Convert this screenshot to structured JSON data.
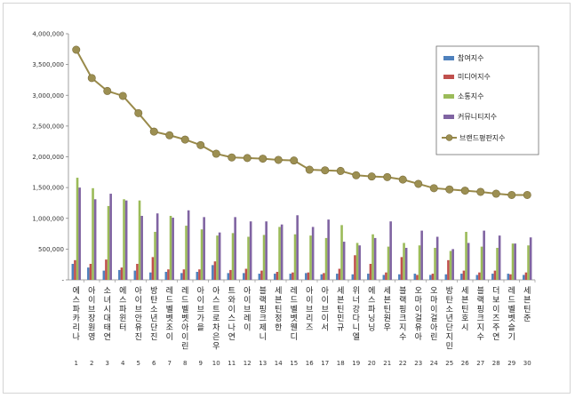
{
  "chart_data": {
    "type": "bar",
    "title": "",
    "xlabel": "",
    "ylabel": "",
    "ylim": [
      0,
      4000000
    ],
    "yticks": [
      "-",
      "500,000",
      "1,000,000",
      "1,500,000",
      "2,000,000",
      "2,500,000",
      "3,000,000",
      "3,500,000",
      "4,000,000"
    ],
    "grid": false,
    "legend_position": "right",
    "ranks": [
      "1",
      "2",
      "3",
      "4",
      "5",
      "6",
      "7",
      "8",
      "9",
      "10",
      "11",
      "12",
      "13",
      "14",
      "15",
      "16",
      "17",
      "18",
      "19",
      "20",
      "21",
      "22",
      "23",
      "24",
      "25",
      "26",
      "27",
      "28",
      "29",
      "30"
    ],
    "categories": [
      "에스파 카리나",
      "아이브 장원영",
      "소녀시대 태연",
      "에스파 윈터",
      "아이브 안유진",
      "방탄소년단 진",
      "레드벨벳 조이",
      "레드벨벳 아이린",
      "아이브 가을",
      "아스트로 차은우",
      "트와이스 나연",
      "아이브 레이",
      "블랙핑크 제니",
      "세븐틴 정한",
      "레드벨벳 웬디",
      "아이브 리즈",
      "아이브 이서",
      "세븐틴 민규",
      "위너 강다니엘",
      "에스파 닝닝",
      "세븐틴 원우",
      "블랙핑크 지수",
      "오마이걸 유아",
      "오마이걸 아린",
      "방탄소년단 지민",
      "세븐틴 호시",
      "블랙핑크 지수",
      "더보이즈 주연",
      "레드벨벳 슬기",
      "세븐틴 준"
    ],
    "series": [
      {
        "name": "참여지수",
        "color": "#4f81bd",
        "values": [
          260000,
          200000,
          150000,
          160000,
          150000,
          120000,
          130000,
          110000,
          130000,
          240000,
          110000,
          110000,
          100000,
          100000,
          100000,
          110000,
          90000,
          100000,
          90000,
          100000,
          80000,
          90000,
          100000,
          80000,
          90000,
          100000,
          80000,
          100000,
          100000,
          80000
        ]
      },
      {
        "name": "미디어지수",
        "color": "#c0504d",
        "values": [
          320000,
          260000,
          330000,
          200000,
          260000,
          370000,
          170000,
          170000,
          170000,
          300000,
          160000,
          180000,
          150000,
          130000,
          120000,
          120000,
          110000,
          180000,
          400000,
          260000,
          120000,
          370000,
          80000,
          100000,
          320000,
          150000,
          120000,
          150000,
          90000,
          120000
        ]
      },
      {
        "name": "소통지수",
        "color": "#9bbb59",
        "values": [
          1660000,
          1490000,
          1200000,
          1310000,
          1290000,
          780000,
          1040000,
          880000,
          820000,
          720000,
          760000,
          700000,
          730000,
          860000,
          740000,
          720000,
          680000,
          890000,
          600000,
          740000,
          540000,
          600000,
          560000,
          520000,
          470000,
          780000,
          540000,
          520000,
          590000,
          560000
        ]
      },
      {
        "name": "커뮤니티지수",
        "color": "#8064a2",
        "values": [
          1500000,
          1310000,
          1400000,
          1290000,
          1040000,
          1080000,
          1010000,
          1130000,
          1020000,
          770000,
          1020000,
          950000,
          950000,
          900000,
          1050000,
          860000,
          980000,
          620000,
          560000,
          680000,
          950000,
          520000,
          800000,
          700000,
          500000,
          600000,
          800000,
          720000,
          590000,
          690000
        ]
      }
    ],
    "line": {
      "name": "브랜드평판지수",
      "color": "#998a4a",
      "values": [
        3740000,
        3280000,
        3070000,
        2990000,
        2710000,
        2410000,
        2350000,
        2280000,
        2190000,
        2050000,
        1990000,
        1980000,
        1970000,
        1950000,
        1940000,
        1790000,
        1780000,
        1770000,
        1700000,
        1680000,
        1670000,
        1630000,
        1560000,
        1490000,
        1470000,
        1450000,
        1430000,
        1400000,
        1380000,
        1380000
      ]
    }
  }
}
